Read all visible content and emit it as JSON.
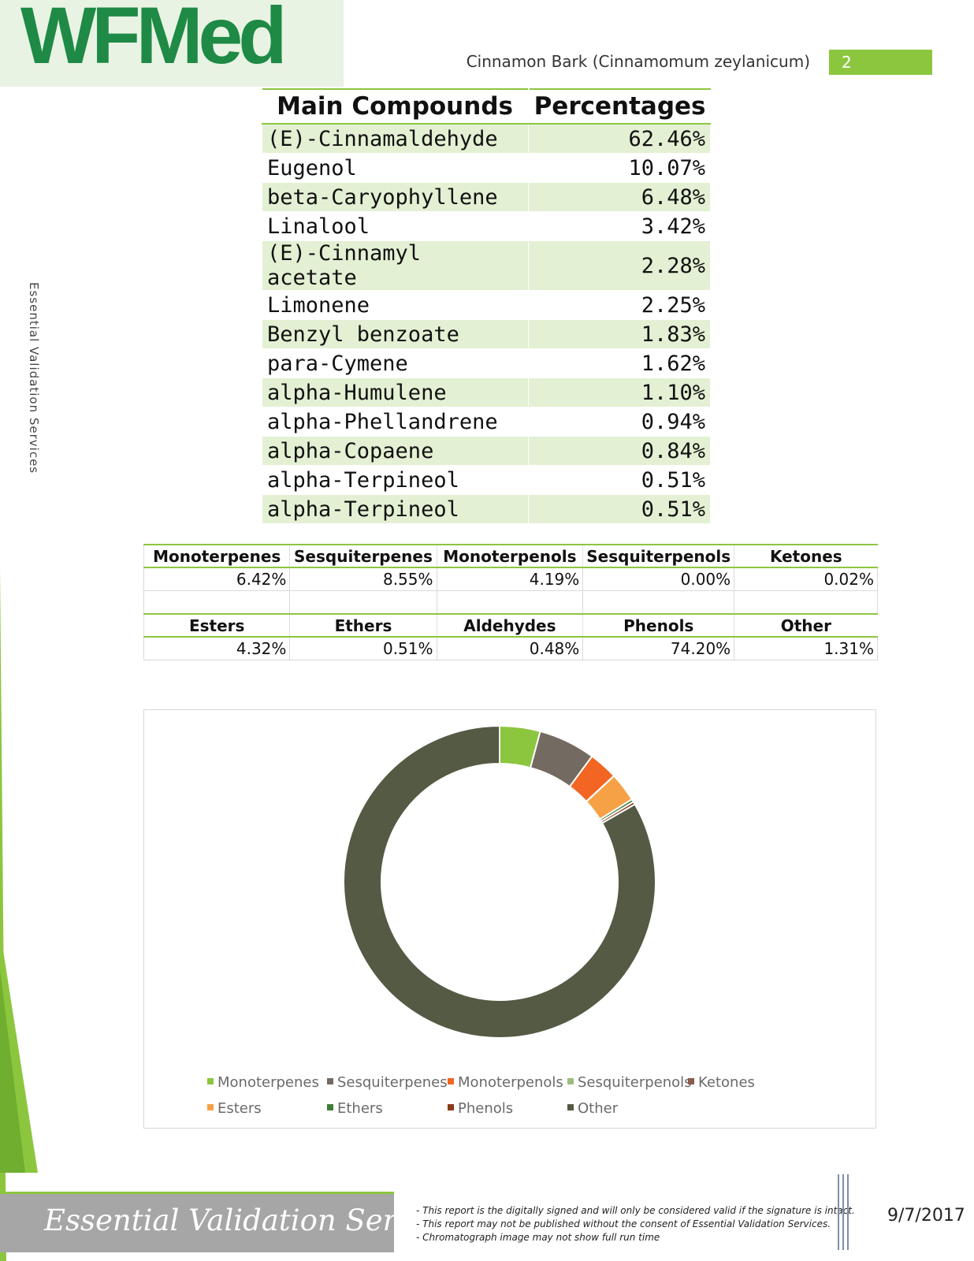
{
  "header": {
    "logo_text": "WFMed",
    "doc_title": "Cinnamon Bark (Cinnamomum zeylanicum)",
    "page_number": "2",
    "side_text": "Essential Validation Services"
  },
  "compounds": {
    "headers": [
      "Main Compounds",
      "Percentages"
    ],
    "rows": [
      [
        "(E)-Cinnamaldehyde",
        "62.46%"
      ],
      [
        "Eugenol",
        "10.07%"
      ],
      [
        "beta-Caryophyllene",
        "6.48%"
      ],
      [
        "Linalool",
        "3.42%"
      ],
      [
        "(E)-Cinnamyl acetate",
        "2.28%"
      ],
      [
        "Limonene",
        "2.25%"
      ],
      [
        "Benzyl benzoate",
        "1.83%"
      ],
      [
        "para-Cymene",
        "1.62%"
      ],
      [
        "alpha-Humulene",
        "1.10%"
      ],
      [
        "alpha-Phellandrene",
        "0.94%"
      ],
      [
        "alpha-Copaene",
        "0.84%"
      ],
      [
        "alpha-Terpineol",
        "0.51%"
      ],
      [
        "alpha-Terpineol",
        "0.51%"
      ]
    ]
  },
  "groups": {
    "row1_headers": [
      "Monoterpenes",
      "Sesquiterpenes",
      "Monoterpenols",
      "Sesquiterpenols",
      "Ketones"
    ],
    "row1_values": [
      "6.42%",
      "8.55%",
      "4.19%",
      "0.00%",
      "0.02%"
    ],
    "row2_headers": [
      "Esters",
      "Ethers",
      "Aldehydes",
      "Phenols",
      "Other"
    ],
    "row2_values": [
      "4.32%",
      "0.51%",
      "0.48%",
      "74.20%",
      "1.31%"
    ]
  },
  "chart_data": {
    "type": "pie",
    "style": "doughnut",
    "categories": [
      "Monoterpenes",
      "Sesquiterpenes",
      "Monoterpenols",
      "Sesquiterpenols",
      "Ketones",
      "Esters",
      "Ethers",
      "Phenols",
      "Other"
    ],
    "values": [
      4.2,
      5.9,
      3.0,
      0.0,
      0.02,
      3.0,
      0.3,
      0.3,
      83.3
    ],
    "colors": [
      "#8cc63f",
      "#736a62",
      "#f26522",
      "#9dbd7f",
      "#8b5a4a",
      "#f7a146",
      "#3e7d36",
      "#8b3a1a",
      "#545a43"
    ],
    "legend_position": "bottom"
  },
  "footer": {
    "script_title": "Essential Validation Services",
    "notes": [
      "- This report is the digitally signed and will only be considered valid if the signature is intact.",
      "- This report may not be published without the consent of Essential Validation Services.",
      "- Chromatograph image may not show full run time"
    ],
    "date": "9/7/2017"
  }
}
